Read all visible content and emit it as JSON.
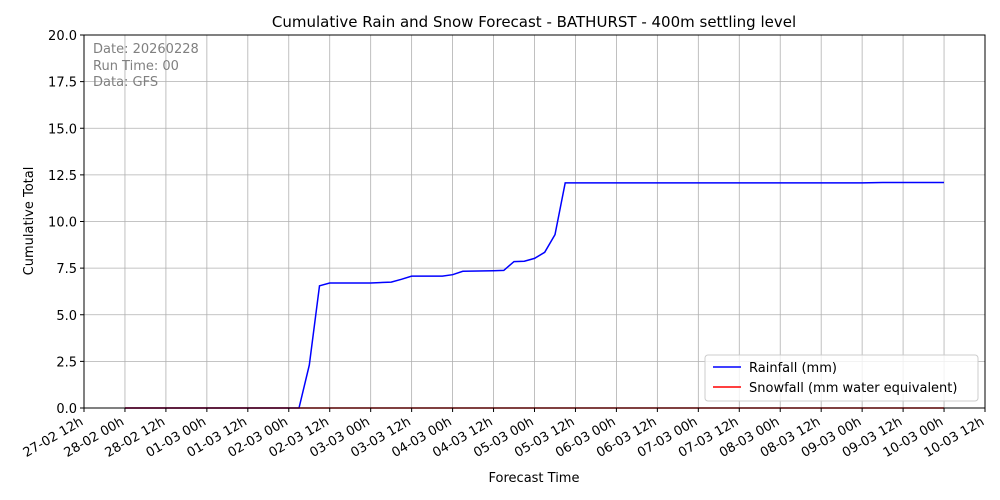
{
  "chart_data": {
    "type": "line",
    "title": "Cumulative Rain and Snow Forecast - BATHURST - 400m settling level",
    "xlabel": "Forecast Time",
    "ylabel": "Cumulative Total",
    "ylim": [
      0,
      20
    ],
    "yticks": [
      "0.0",
      "2.5",
      "5.0",
      "7.5",
      "10.0",
      "12.5",
      "15.0",
      "17.5",
      "20.0"
    ],
    "xlim": [
      "27-02 12h",
      "10-03 12h"
    ],
    "xticks": [
      "27-02 12h",
      "28-02 00h",
      "28-02 12h",
      "01-03 00h",
      "01-03 12h",
      "02-03 00h",
      "02-03 12h",
      "03-03 00h",
      "03-03 12h",
      "04-03 00h",
      "04-03 12h",
      "05-03 00h",
      "05-03 12h",
      "06-03 00h",
      "06-03 12h",
      "07-03 00h",
      "07-03 12h",
      "08-03 00h",
      "08-03 12h",
      "09-03 00h",
      "09-03 12h",
      "10-03 00h",
      "10-03 12h"
    ],
    "grid": true,
    "legend_position": "lower-right",
    "annotation": [
      "Date: 20260228",
      "Run Time: 00",
      "Data: GFS"
    ],
    "series": [
      {
        "name": "Rainfall (mm)",
        "color": "#0000ff",
        "points": [
          [
            "28-02 00h",
            0.0
          ],
          [
            "02-03 03h",
            0.0
          ],
          [
            "02-03 06h",
            2.3
          ],
          [
            "02-03 09h",
            6.55
          ],
          [
            "02-03 12h",
            6.7
          ],
          [
            "03-03 00h",
            6.7
          ],
          [
            "03-03 06h",
            6.75
          ],
          [
            "03-03 09h",
            6.9
          ],
          [
            "03-03 12h",
            7.07
          ],
          [
            "03-03 21h",
            7.07
          ],
          [
            "04-03 00h",
            7.15
          ],
          [
            "04-03 03h",
            7.33
          ],
          [
            "04-03 12h",
            7.36
          ],
          [
            "04-03 15h",
            7.38
          ],
          [
            "04-03 18h",
            7.85
          ],
          [
            "04-03 21h",
            7.87
          ],
          [
            "05-03 00h",
            8.02
          ],
          [
            "05-03 03h",
            8.35
          ],
          [
            "05-03 06h",
            9.3
          ],
          [
            "05-03 09h",
            12.07
          ],
          [
            "09-03 00h",
            12.07
          ],
          [
            "09-03 06h",
            12.09
          ],
          [
            "10-03 00h",
            12.09
          ]
        ]
      },
      {
        "name": "Snowfall (mm water equivalent)",
        "color": "#ff0000",
        "points": [
          [
            "28-02 00h",
            0.0
          ],
          [
            "10-03 00h",
            0.0
          ]
        ]
      }
    ]
  }
}
